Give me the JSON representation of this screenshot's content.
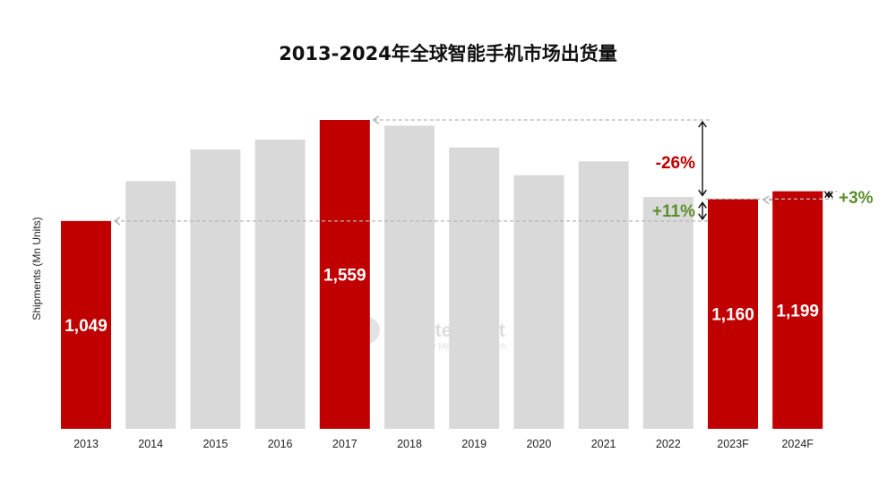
{
  "chart_data": {
    "type": "bar",
    "title": "2013-2024年全球智能手机市场出货量",
    "ylabel": "Shipments (Mn Units)",
    "xlabel": "",
    "categories": [
      "2013",
      "2014",
      "2015",
      "2016",
      "2017",
      "2018",
      "2019",
      "2020",
      "2021",
      "2022",
      "2023F",
      "2024F"
    ],
    "values": [
      1049,
      1250,
      1410,
      1460,
      1559,
      1530,
      1420,
      1280,
      1350,
      1170,
      1160,
      1199
    ],
    "labels": [
      "1,049",
      "",
      "",
      "",
      "1,559",
      "",
      "",
      "",
      "",
      "",
      "1,160",
      "1,199"
    ],
    "highlighted": [
      true,
      false,
      false,
      false,
      true,
      false,
      false,
      false,
      false,
      false,
      true,
      true
    ],
    "ylim": [
      0,
      1559
    ],
    "grid": false,
    "colors": {
      "highlight": "#c00000",
      "normal": "#d9d9d9",
      "negative": "#c00000",
      "positive": "#5b8e2b"
    },
    "annotations": [
      {
        "text": "-26%",
        "kind": "negative",
        "from": "2017",
        "to": "2023F"
      },
      {
        "text": "+11%",
        "kind": "positive",
        "from": "2013",
        "to": "2023F"
      },
      {
        "text": "+3%",
        "kind": "positive",
        "from": "2023F",
        "to": "2024F"
      }
    ],
    "watermark": {
      "brand": "Counterpoint",
      "tagline": "Technology Market Research"
    }
  }
}
